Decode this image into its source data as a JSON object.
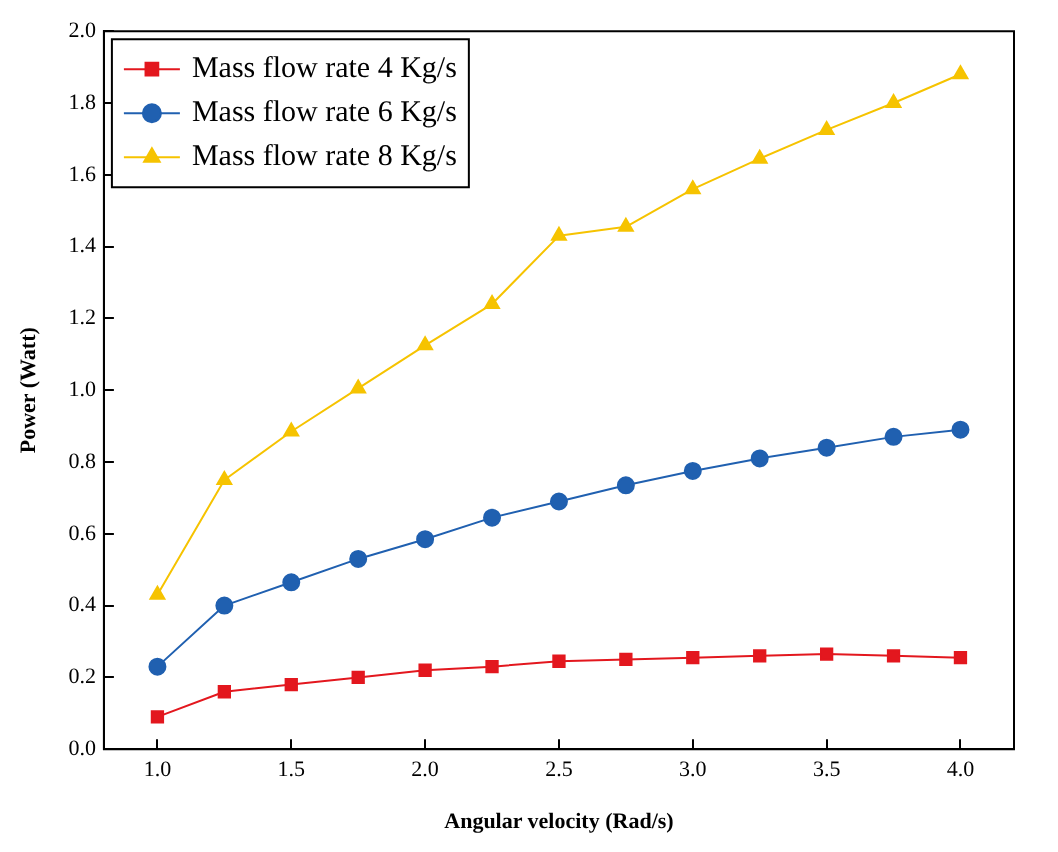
{
  "chart_data": {
    "type": "line",
    "xlabel": "Angular velocity (Rad/s)",
    "ylabel": "Power (Watt)",
    "x": [
      1.0,
      1.25,
      1.5,
      1.75,
      2.0,
      2.25,
      2.5,
      2.75,
      3.0,
      3.25,
      3.5,
      3.75,
      4.0
    ],
    "series": [
      {
        "name": "Mass flow rate 4 Kg/s",
        "color": "#e3171e",
        "marker": "square",
        "values": [
          0.09,
          0.16,
          0.18,
          0.2,
          0.22,
          0.23,
          0.245,
          0.25,
          0.255,
          0.26,
          0.265,
          0.26,
          0.255
        ]
      },
      {
        "name": "Mass flow rate 6 Kg/s",
        "color": "#2060b0",
        "marker": "circle",
        "values": [
          0.23,
          0.4,
          0.465,
          0.53,
          0.585,
          0.645,
          0.69,
          0.735,
          0.775,
          0.81,
          0.84,
          0.87,
          0.89
        ]
      },
      {
        "name": "Mass flow rate 8 Kg/s",
        "color": "#f6c300",
        "marker": "triangle",
        "values": [
          0.43,
          0.75,
          0.885,
          1.005,
          1.125,
          1.24,
          1.43,
          1.455,
          1.56,
          1.645,
          1.725,
          1.8,
          1.88
        ]
      }
    ],
    "xlim": [
      0.8,
      4.2
    ],
    "xticks": [
      {
        "value": 1.0,
        "label": "1.0"
      },
      {
        "value": 1.5,
        "label": "1.5"
      },
      {
        "value": 2.0,
        "label": "2.0"
      },
      {
        "value": 2.5,
        "label": "2.5"
      },
      {
        "value": 3.0,
        "label": "3.0"
      },
      {
        "value": 3.5,
        "label": "3.5"
      },
      {
        "value": 4.0,
        "label": "4.0"
      }
    ],
    "ylim": [
      0,
      2
    ],
    "yticks": [
      {
        "value": 0,
        "label": "0.0"
      },
      {
        "value": 0.2,
        "label": "0.2"
      },
      {
        "value": 0.4,
        "label": "0.4"
      },
      {
        "value": 0.6,
        "label": "0.6"
      },
      {
        "value": 0.8,
        "label": "0.8"
      },
      {
        "value": 1.0,
        "label": "1.0"
      },
      {
        "value": 1.2,
        "label": "1.2"
      },
      {
        "value": 1.4,
        "label": "1.4"
      },
      {
        "value": 1.6,
        "label": "1.6"
      },
      {
        "value": 1.8,
        "label": "1.8"
      },
      {
        "value": 2.0,
        "label": "2.0"
      }
    ],
    "grid": false,
    "legend": "top left",
    "line_style": "solid"
  }
}
